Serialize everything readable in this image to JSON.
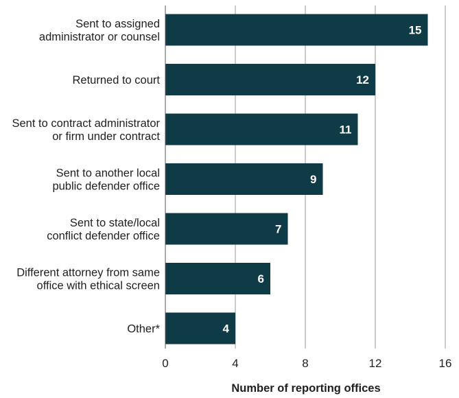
{
  "chart_data": {
    "type": "bar",
    "orientation": "horizontal",
    "categories": [
      [
        "Sent to assigned",
        "administrator or counsel"
      ],
      [
        "Returned to court"
      ],
      [
        "Sent to contract administrator",
        "or firm under contract"
      ],
      [
        "Sent to another local",
        "public defender office"
      ],
      [
        "Sent to state/local",
        "conflict defender office"
      ],
      [
        "Different attorney from same",
        "office with ethical screen"
      ],
      [
        "Other*"
      ]
    ],
    "values": [
      15,
      12,
      11,
      9,
      7,
      6,
      4
    ],
    "xlabel": "Number of reporting offices",
    "xlim": [
      0,
      16
    ],
    "xticks": [
      0,
      4,
      8,
      12,
      16
    ],
    "grid": "vertical",
    "bar_color": "#0f3b47",
    "grid_color": "#9a9a9a",
    "value_label_color": "#ffffff"
  }
}
